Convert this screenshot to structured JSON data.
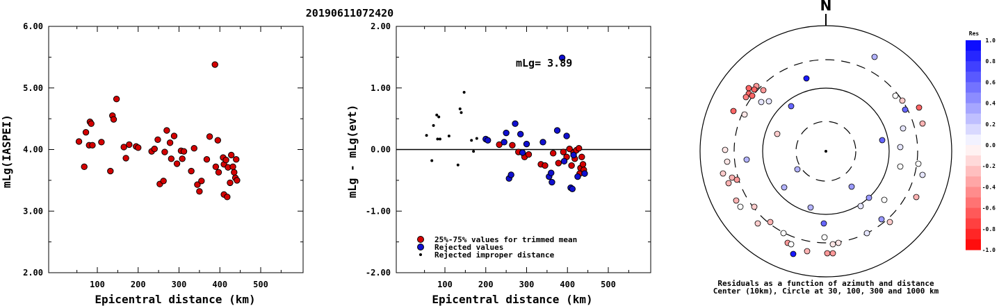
{
  "title": "20190611072420",
  "chart_data": [
    {
      "type": "scatter",
      "name": "left",
      "xlabel": "Epicentral distance (km)",
      "ylabel": "mLg(IASPEI)",
      "xlim": [
        0,
        600
      ],
      "ylim": [
        2.0,
        6.0
      ],
      "xticks": [
        "100",
        "200",
        "300",
        "400",
        "500"
      ],
      "yticks": [
        "2.00",
        "3.00",
        "4.00",
        "5.00",
        "6.00"
      ],
      "points": [
        [
          55,
          4.13
        ],
        [
          68,
          3.72
        ],
        [
          72,
          4.28
        ],
        [
          80,
          4.07
        ],
        [
          82,
          4.45
        ],
        [
          85,
          4.42
        ],
        [
          88,
          4.07
        ],
        [
          110,
          4.12
        ],
        [
          132,
          3.65
        ],
        [
          137,
          4.55
        ],
        [
          140,
          4.49
        ],
        [
          147,
          4.82
        ],
        [
          165,
          4.04
        ],
        [
          170,
          3.86
        ],
        [
          178,
          4.08
        ],
        [
          195,
          4.05
        ],
        [
          200,
          4.03
        ],
        [
          233,
          3.97
        ],
        [
          240,
          4.01
        ],
        [
          248,
          4.16
        ],
        [
          253,
          3.44
        ],
        [
          262,
          3.49
        ],
        [
          265,
          3.96
        ],
        [
          270,
          4.31
        ],
        [
          278,
          4.11
        ],
        [
          281,
          3.85
        ],
        [
          288,
          4.22
        ],
        [
          295,
          3.77
        ],
        [
          305,
          3.98
        ],
        [
          308,
          3.85
        ],
        [
          312,
          3.97
        ],
        [
          330,
          3.65
        ],
        [
          337,
          4.02
        ],
        [
          345,
          3.43
        ],
        [
          350,
          3.32
        ],
        [
          355,
          3.49
        ],
        [
          368,
          3.84
        ],
        [
          375,
          4.21
        ],
        [
          388,
          5.38
        ],
        [
          390,
          3.72
        ],
        [
          395,
          4.15
        ],
        [
          397,
          3.63
        ],
        [
          408,
          3.87
        ],
        [
          410,
          3.76
        ],
        [
          410,
          3.27
        ],
        [
          415,
          3.83
        ],
        [
          418,
          3.23
        ],
        [
          420,
          3.71
        ],
        [
          425,
          3.46
        ],
        [
          428,
          3.91
        ],
        [
          432,
          3.72
        ],
        [
          435,
          3.63
        ],
        [
          438,
          3.54
        ],
        [
          440,
          3.84
        ],
        [
          442,
          3.5
        ]
      ]
    },
    {
      "type": "scatter",
      "name": "middle",
      "xlabel": "Epicentral distance (km)",
      "ylabel": "mLg - mLg(evt)",
      "xlim": [
        0,
        600
      ],
      "ylim": [
        -2.0,
        2.0
      ],
      "xticks": [
        "100",
        "200",
        "300",
        "400",
        "500"
      ],
      "yticks": [
        "-2.00",
        "-1.00",
        "0.00",
        "1.00",
        "2.00"
      ],
      "annotation": "mLg= 3.89",
      "reference_line_y": 0,
      "legend": [
        {
          "label": "25%-75% values for trimmed mean",
          "color": "#d40000"
        },
        {
          "label": "Rejected values",
          "color": "#1010d0"
        },
        {
          "label": "Rejected improper distance",
          "color": "#000000"
        }
      ],
      "series": [
        {
          "key": "trimmed",
          "points": [
            [
              233,
              0.08
            ],
            [
              265,
              0.07
            ],
            [
              280,
              -0.04
            ],
            [
              295,
              -0.12
            ],
            [
              305,
              -0.08
            ],
            [
              335,
              -0.24
            ],
            [
              345,
              -0.26
            ],
            [
              365,
              -0.06
            ],
            [
              378,
              -0.22
            ],
            [
              390,
              -0.04
            ],
            [
              398,
              -0.12
            ],
            [
              405,
              0.01
            ],
            [
              410,
              -0.26
            ],
            [
              415,
              -0.05
            ],
            [
              418,
              -0.15
            ],
            [
              422,
              -0.01
            ],
            [
              428,
              0.02
            ],
            [
              430,
              -0.39
            ],
            [
              432,
              -0.3
            ],
            [
              435,
              -0.12
            ],
            [
              438,
              -0.24
            ],
            [
              440,
              -0.33
            ]
          ]
        },
        {
          "key": "rejected",
          "points": [
            [
              200,
              0.17
            ],
            [
              205,
              0.15
            ],
            [
              245,
              0.12
            ],
            [
              250,
              0.27
            ],
            [
              257,
              -0.47
            ],
            [
              262,
              -0.41
            ],
            [
              272,
              0.42
            ],
            [
              285,
              0.25
            ],
            [
              290,
              -0.05
            ],
            [
              300,
              0.09
            ],
            [
              340,
              0.12
            ],
            [
              355,
              -0.44
            ],
            [
              360,
              -0.38
            ],
            [
              362,
              -0.53
            ],
            [
              375,
              0.31
            ],
            [
              387,
              1.49
            ],
            [
              392,
              -0.19
            ],
            [
              398,
              0.22
            ],
            [
              408,
              -0.62
            ],
            [
              412,
              -0.64
            ],
            [
              415,
              -0.09
            ],
            [
              425,
              -0.44
            ],
            [
              442,
              -0.39
            ]
          ]
        },
        {
          "key": "improper",
          "points": [
            [
              55,
              0.23
            ],
            [
              68,
              -0.18
            ],
            [
              72,
              0.39
            ],
            [
              80,
              0.56
            ],
            [
              82,
              0.17
            ],
            [
              85,
              0.53
            ],
            [
              88,
              0.17
            ],
            [
              110,
              0.22
            ],
            [
              132,
              -0.25
            ],
            [
              137,
              0.66
            ],
            [
              140,
              0.6
            ],
            [
              147,
              0.93
            ],
            [
              165,
              0.15
            ],
            [
              170,
              -0.03
            ],
            [
              178,
              0.18
            ]
          ]
        }
      ]
    },
    {
      "type": "scatter",
      "name": "polar",
      "north_label": "N",
      "caption_line1": "Residuals as a function of azimuth and distance",
      "caption_line2": "Center (10km), Circle at 30, 100, 300 and 1000 km",
      "colorbar": {
        "title": "Res",
        "ticks": [
          "1.0",
          "0.8",
          "0.6",
          "0.4",
          "0.2",
          "0.0",
          "-0.2",
          "-0.4",
          "-0.6",
          "-0.8",
          "-1.0"
        ]
      },
      "points": [
        [
          1258,
          82,
          0.3
        ],
        [
          1160,
          113,
          0.9
        ],
        [
          1088,
          124,
          -0.4
        ],
        [
          1077,
          127,
          -0.6
        ],
        [
          1085,
          129,
          -0.6
        ],
        [
          1098,
          130,
          -0.4
        ],
        [
          1077,
          135,
          -0.6
        ],
        [
          1082,
          138,
          -0.6
        ],
        [
          1073,
          140,
          -0.5
        ],
        [
          1095,
          147,
          0.1
        ],
        [
          1106,
          146,
          0.1
        ],
        [
          1138,
          153,
          0.6
        ],
        [
          1055,
          160,
          -0.6
        ],
        [
          1071,
          165,
          -0.1
        ],
        [
          1288,
          138,
          0.0
        ],
        [
          1298,
          145,
          -0.2
        ],
        [
          1302,
          158,
          0.6
        ],
        [
          1322,
          155,
          -0.6
        ],
        [
          1327,
          178,
          -0.3
        ],
        [
          1299,
          185,
          0.1
        ],
        [
          1118,
          193,
          -0.2
        ],
        [
          1269,
          202,
          0.6
        ],
        [
          1295,
          212,
          0.1
        ],
        [
          1043,
          216,
          -0.1
        ],
        [
          1074,
          230,
          0.3
        ],
        [
          1046,
          233,
          -0.1
        ],
        [
          1321,
          236,
          0.0
        ],
        [
          1040,
          250,
          -0.2
        ],
        [
          1295,
          240,
          0.0
        ],
        [
          1053,
          256,
          -0.3
        ],
        [
          1327,
          252,
          0.1
        ],
        [
          1048,
          264,
          -0.3
        ],
        [
          1060,
          259,
          -0.4
        ],
        [
          1147,
          244,
          0.3
        ],
        [
          1128,
          270,
          0.3
        ],
        [
          1225,
          269,
          0.4
        ],
        [
          1250,
          285,
          0.4
        ],
        [
          1272,
          288,
          0.0
        ],
        [
          1318,
          284,
          -0.3
        ],
        [
          1059,
          289,
          -0.3
        ],
        [
          1065,
          298,
          0.0
        ],
        [
          1166,
          299,
          0.3
        ],
        [
          1085,
          298,
          -0.2
        ],
        [
          1238,
          297,
          0.1
        ],
        [
          1268,
          316,
          0.4
        ],
        [
          1280,
          320,
          -0.2
        ],
        [
          1108,
          320,
          -0.3
        ],
        [
          1090,
          322,
          -0.2
        ],
        [
          1185,
          322,
          0.6
        ],
        [
          1127,
          336,
          0.0
        ],
        [
          1247,
          336,
          0.1
        ],
        [
          1186,
          342,
          0.0
        ],
        [
          1133,
          350,
          -0.4
        ],
        [
          1138,
          352,
          0.0
        ],
        [
          1198,
          352,
          -0.1
        ],
        [
          1206,
          350,
          -0.1
        ],
        [
          1161,
          362,
          -0.3
        ],
        [
          1141,
          366,
          0.9
        ],
        [
          1190,
          365,
          -0.4
        ],
        [
          1198,
          365,
          -0.4
        ]
      ]
    }
  ]
}
